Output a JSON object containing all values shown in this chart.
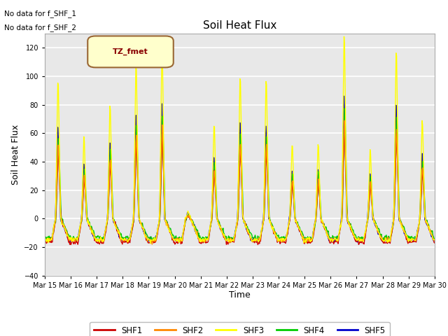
{
  "title": "Soil Heat Flux",
  "ylabel": "Soil Heat Flux",
  "xlabel": "Time",
  "ylim": [
    -40,
    130
  ],
  "yticks": [
    -40,
    -20,
    0,
    20,
    40,
    60,
    80,
    100,
    120
  ],
  "axes_bg": "#e8e8e8",
  "grid_color": "white",
  "text_annotations": [
    "No data for f_SHF_1",
    "No data for f_SHF_2"
  ],
  "legend_label": "TZ_fmet",
  "series_colors": [
    "#cc0000",
    "#ff8800",
    "#ffff00",
    "#00cc00",
    "#0000cc"
  ],
  "series_names": [
    "SHF1",
    "SHF2",
    "SHF3",
    "SHF4",
    "SHF5"
  ],
  "n_days": 15,
  "start_day": 15,
  "points_per_day": 48,
  "day_peaks": [
    85,
    50,
    70,
    95,
    105,
    4,
    58,
    87,
    85,
    45,
    45,
    113,
    42,
    103,
    60
  ],
  "night_base": -15,
  "shf3_scale": 1.25,
  "shf4_scale": 0.75,
  "shf1_scale": 0.6,
  "shf2_scale": 0.65,
  "shf5_scale": 0.8
}
